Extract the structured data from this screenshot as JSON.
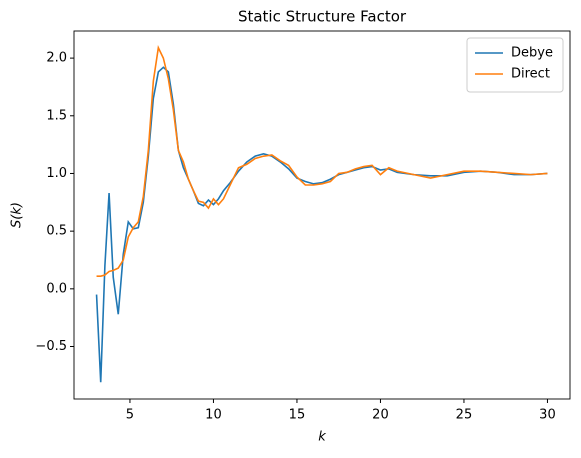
{
  "chart_data": {
    "type": "line",
    "title": "Static Structure Factor",
    "x_label": "k",
    "y_label": "S(k)",
    "x": [
      3.0,
      3.25,
      3.5,
      3.75,
      4.0,
      4.3,
      4.6,
      4.9,
      5.2,
      5.5,
      5.8,
      6.1,
      6.4,
      6.7,
      7.0,
      7.3,
      7.6,
      7.9,
      8.2,
      8.5,
      8.8,
      9.1,
      9.4,
      9.7,
      10.0,
      10.3,
      10.6,
      11.0,
      11.5,
      12.0,
      12.5,
      13.0,
      13.5,
      14.0,
      14.5,
      15.0,
      15.5,
      16.0,
      16.5,
      17.0,
      17.5,
      18.0,
      18.5,
      19.0,
      19.5,
      20.0,
      20.5,
      21.0,
      22.0,
      23.0,
      24.0,
      25.0,
      26.0,
      27.0,
      28.0,
      29.0,
      30.0
    ],
    "series": [
      {
        "name": "Debye",
        "color": "#1f77b4",
        "values": [
          -0.05,
          -0.81,
          0.2,
          0.83,
          0.1,
          -0.22,
          0.3,
          0.58,
          0.52,
          0.53,
          0.75,
          1.15,
          1.65,
          1.88,
          1.92,
          1.88,
          1.6,
          1.2,
          1.05,
          0.95,
          0.85,
          0.74,
          0.72,
          0.77,
          0.73,
          0.78,
          0.85,
          0.92,
          1.02,
          1.1,
          1.15,
          1.17,
          1.15,
          1.1,
          1.04,
          0.96,
          0.93,
          0.91,
          0.92,
          0.95,
          0.99,
          1.01,
          1.03,
          1.05,
          1.06,
          1.03,
          1.04,
          1.01,
          0.99,
          0.98,
          0.98,
          1.01,
          1.02,
          1.01,
          0.99,
          0.99,
          1.0
        ]
      },
      {
        "name": "Direct",
        "color": "#ff7f0e",
        "values": [
          0.11,
          0.11,
          0.12,
          0.15,
          0.16,
          0.18,
          0.25,
          0.45,
          0.53,
          0.58,
          0.8,
          1.2,
          1.8,
          2.09,
          2.0,
          1.82,
          1.55,
          1.2,
          1.1,
          0.95,
          0.85,
          0.76,
          0.75,
          0.7,
          0.78,
          0.73,
          0.78,
          0.9,
          1.05,
          1.08,
          1.13,
          1.15,
          1.16,
          1.11,
          1.07,
          0.97,
          0.9,
          0.9,
          0.91,
          0.93,
          1.0,
          1.01,
          1.04,
          1.06,
          1.07,
          0.99,
          1.05,
          1.02,
          0.99,
          0.96,
          0.99,
          1.02,
          1.02,
          1.01,
          1.0,
          0.99,
          1.0
        ]
      }
    ],
    "xlim": [
      1.65,
      31.35
    ],
    "ylim": [
      -0.955,
      2.235
    ],
    "xticks": [
      5,
      10,
      15,
      20,
      25,
      30
    ],
    "yticks": [
      {
        "value": -0.5,
        "label": "−0.5"
      },
      {
        "value": 0,
        "label": "0.0"
      },
      0.5,
      {
        "value": 1,
        "label": "1.0"
      },
      1.5,
      {
        "value": 2,
        "label": "2.0"
      }
    ],
    "legend": "upper right"
  }
}
